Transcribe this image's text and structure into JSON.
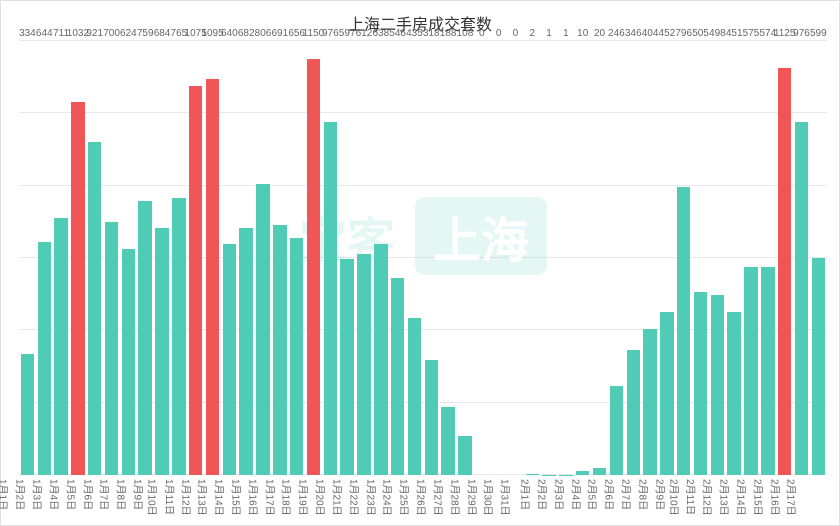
{
  "chart": {
    "type": "bar",
    "title": "上海二手房成交套数",
    "title_fontsize": 16,
    "title_color": "#333333",
    "background_color": "#ffffff",
    "border_color": "#e0e0e0",
    "grid_color": "#e8e8e8",
    "bar_width": 0.8,
    "label_fontsize": 10,
    "label_color": "#666666",
    "axis_label_fontsize": 10,
    "ylim": [
      0,
      1200
    ],
    "ytick_step": 200,
    "highlight_color": "#f05656",
    "normal_color": "#50cbb6",
    "categories": [
      "1月1日",
      "1月2日",
      "1月3日",
      "1月4日",
      "1月5日",
      "1月6日",
      "1月7日",
      "1月8日",
      "1月9日",
      "1月10日",
      "1月11日",
      "1月12日",
      "1月13日",
      "1月14日",
      "1月15日",
      "1月16日",
      "1月17日",
      "1月18日",
      "1月19日",
      "1月20日",
      "1月21日",
      "1月22日",
      "1月23日",
      "1月24日",
      "1月25日",
      "1月26日",
      "1月27日",
      "1月28日",
      "1月29日",
      "1月30日",
      "1月31日",
      "2月1日",
      "2月2日",
      "2月3日",
      "2月4日",
      "2月5日",
      "2月6日",
      "2月7日",
      "2月8日",
      "2月9日",
      "2月10日",
      "2月11日",
      "2月12日",
      "2月13日",
      "2月14日",
      "2月15日",
      "2月16日",
      "2月17日"
    ],
    "values": [
      334,
      644,
      711,
      1032,
      921,
      700,
      624,
      759,
      684,
      765,
      1075,
      1095,
      640,
      682,
      806,
      691,
      656,
      1150,
      976,
      597,
      612,
      638,
      546,
      435,
      318,
      188,
      108,
      0,
      0,
      0,
      2,
      1,
      1,
      10,
      20,
      246,
      346,
      404,
      452,
      796,
      505,
      498,
      451,
      575,
      574,
      1125,
      976,
      599
    ],
    "highlighted_indices": [
      3,
      10,
      11,
      17,
      45
    ],
    "watermark": {
      "text1": "宝客",
      "text2": "上海",
      "color": "rgba(80,203,182,0.15)"
    }
  }
}
